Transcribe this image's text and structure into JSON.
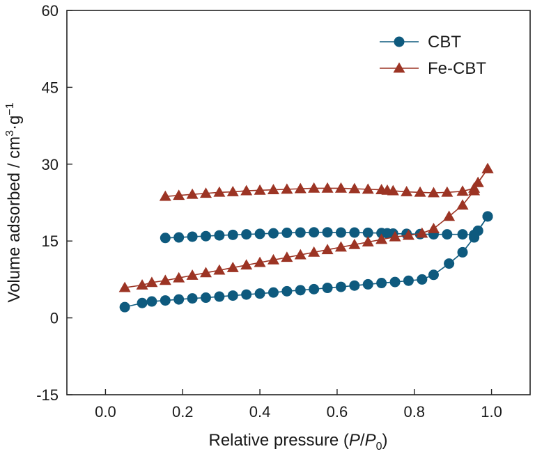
{
  "chart_data": {
    "type": "line",
    "title": "",
    "xlabel": {
      "prefix": "Relative pressure (",
      "p": "P",
      "slash": "/",
      "p0": "P",
      "p0_sub": "0",
      "suffix": ")"
    },
    "ylabel": {
      "main": "Volume adsorbed / cm",
      "sup1": "3",
      "mid": "·g",
      "sup2": "−1"
    },
    "xlim": [
      -0.1,
      1.1
    ],
    "ylim": [
      -15,
      60
    ],
    "x_ticks": [
      0.0,
      0.2,
      0.4,
      0.6,
      0.8,
      1.0
    ],
    "x_tick_labels": [
      "0.0",
      "0.2",
      "0.4",
      "0.6",
      "0.8",
      "1.0"
    ],
    "y_ticks": [
      -15,
      0,
      15,
      30,
      45,
      60
    ],
    "y_tick_labels": [
      "-15",
      "0",
      "15",
      "30",
      "45",
      "60"
    ],
    "grid": false,
    "legend": "top-right",
    "series": [
      {
        "name": "CBT",
        "marker": "circle",
        "color": "#0e5a7e",
        "segments": [
          {
            "x": [
              0.05,
              0.095,
              0.12,
              0.155,
              0.19,
              0.225,
              0.26,
              0.295,
              0.33,
              0.365,
              0.4,
              0.435,
              0.47,
              0.505,
              0.54,
              0.575,
              0.61,
              0.645,
              0.68,
              0.715,
              0.75,
              0.785,
              0.82,
              0.85,
              0.89,
              0.925,
              0.955,
              0.965,
              0.99
            ],
            "y": [
              2.1,
              2.9,
              3.2,
              3.4,
              3.6,
              3.8,
              3.95,
              4.15,
              4.35,
              4.55,
              4.75,
              4.95,
              5.2,
              5.4,
              5.6,
              5.85,
              6.05,
              6.3,
              6.55,
              6.8,
              7.0,
              7.25,
              7.5,
              8.4,
              10.6,
              12.8,
              15.7,
              17.0,
              19.8
            ]
          },
          {
            "x": [
              0.99,
              0.965,
              0.955,
              0.925,
              0.885,
              0.85,
              0.815,
              0.78,
              0.745,
              0.73,
              0.715,
              0.68,
              0.645,
              0.61,
              0.575,
              0.54,
              0.505,
              0.47,
              0.435,
              0.4,
              0.365,
              0.33,
              0.295,
              0.26,
              0.225,
              0.19,
              0.155
            ],
            "y": [
              19.8,
              17.0,
              16.2,
              16.3,
              16.3,
              16.3,
              16.35,
              16.4,
              16.45,
              16.5,
              16.55,
              16.6,
              16.65,
              16.65,
              16.7,
              16.7,
              16.65,
              16.6,
              16.5,
              16.4,
              16.3,
              16.2,
              16.1,
              15.95,
              15.85,
              15.7,
              15.6
            ]
          }
        ]
      },
      {
        "name": "Fe-CBT",
        "marker": "triangle",
        "color": "#9c3424",
        "segments": [
          {
            "x": [
              0.05,
              0.095,
              0.12,
              0.155,
              0.19,
              0.225,
              0.26,
              0.295,
              0.33,
              0.365,
              0.4,
              0.435,
              0.47,
              0.505,
              0.54,
              0.575,
              0.61,
              0.645,
              0.68,
              0.715,
              0.75,
              0.785,
              0.82,
              0.85,
              0.89,
              0.925,
              0.955,
              0.965,
              0.99
            ],
            "y": [
              5.9,
              6.4,
              6.9,
              7.3,
              7.8,
              8.3,
              8.8,
              9.3,
              9.8,
              10.3,
              10.8,
              11.3,
              11.8,
              12.3,
              12.8,
              13.3,
              13.8,
              14.3,
              14.8,
              15.3,
              15.8,
              16.1,
              16.5,
              17.4,
              19.8,
              22.0,
              24.8,
              26.4,
              29.1
            ]
          },
          {
            "x": [
              0.99,
              0.965,
              0.955,
              0.925,
              0.885,
              0.85,
              0.815,
              0.78,
              0.745,
              0.73,
              0.715,
              0.68,
              0.645,
              0.61,
              0.575,
              0.54,
              0.505,
              0.47,
              0.435,
              0.4,
              0.365,
              0.33,
              0.295,
              0.26,
              0.225,
              0.19,
              0.155
            ],
            "y": [
              29.1,
              26.4,
              25.3,
              24.7,
              24.5,
              24.4,
              24.5,
              24.6,
              24.8,
              24.9,
              25.0,
              25.1,
              25.2,
              25.3,
              25.3,
              25.3,
              25.2,
              25.1,
              25.0,
              24.9,
              24.8,
              24.6,
              24.5,
              24.3,
              24.1,
              23.9,
              23.7
            ]
          }
        ]
      }
    ]
  }
}
